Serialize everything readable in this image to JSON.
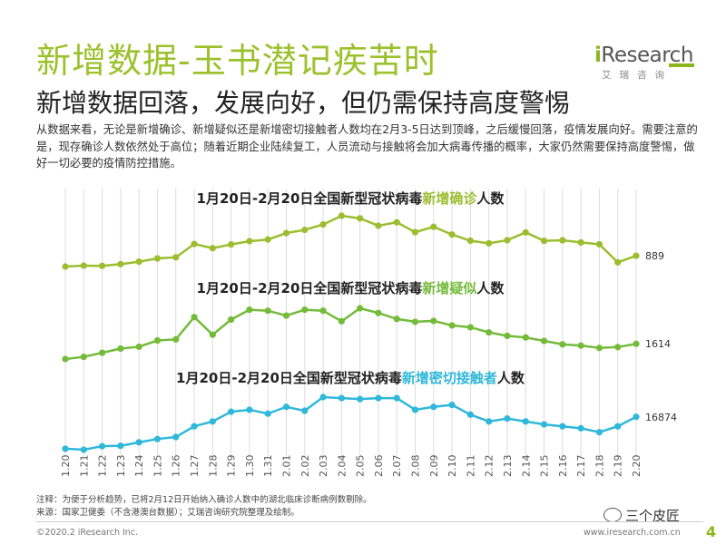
{
  "title": "新增数据-玉书潜记疾苦时",
  "subtitle": "新增数据回落，发展向好，但仍需保持高度警惕",
  "paragraph": "从数据来看，无论是新增确诊、新增疑似还是新增密切接触者人数均在2月3-5日达到顶峰，之后缓慢回落，疫情发展向好。需要注意的是，现存确诊人数依然处于高位；随着近期企业陆续复工，人员流动与接触将会加大病毒传播的概率，大家仍然需要保持高度警惕，做好一切必要的疫情防控措施。",
  "brand": {
    "logo_i": "i",
    "logo_rest": "Research",
    "cn": "艾瑞咨询"
  },
  "colors": {
    "title": "#9dc12c",
    "confirmed": "#9cbd2f",
    "suspected": "#74bb3a",
    "contacts": "#2fb8da",
    "grid": "#dcdcdc"
  },
  "chart_data": {
    "type": "line",
    "categories": [
      "1.20",
      "1.21",
      "1.22",
      "1.23",
      "1.24",
      "1.25",
      "1.26",
      "1.27",
      "1.28",
      "1.29",
      "1.30",
      "1.31",
      "2.01",
      "2.02",
      "2.03",
      "2.04",
      "2.05",
      "2.06",
      "2.07",
      "2.08",
      "2.09",
      "2.10",
      "2.11",
      "2.12",
      "2.13",
      "2.14",
      "2.15",
      "2.16",
      "2.17",
      "2.18",
      "2.19",
      "2.20"
    ],
    "series": [
      {
        "title_prefix": "1月20日-2月20日全国新型冠状病毒",
        "title_highlight": "新增确诊",
        "title_suffix": "人数",
        "end_label": "889",
        "values": [
          77,
          149,
          131,
          259,
          444,
          688,
          769,
          1771,
          1459,
          1737,
          1982,
          2102,
          2590,
          2829,
          3235,
          3887,
          3694,
          3143,
          3399,
          2656,
          3062,
          2478,
          2015,
          1820,
          2055,
          2641,
          2009,
          2048,
          1886,
          1749,
          394,
          889
        ]
      },
      {
        "title_prefix": "1月20日-2月20日全国新型冠状病毒",
        "title_highlight": "新增疑似",
        "title_suffix": "人数",
        "end_label": "1614",
        "values": [
          27,
          257,
          680,
          1118,
          1309,
          1965,
          2077,
          4406,
          2564,
          4148,
          5173,
          5072,
          4562,
          5173,
          5072,
          3971,
          5328,
          4833,
          4214,
          3916,
          4008,
          3536,
          3342,
          2807,
          2450,
          2277,
          1918,
          1563,
          1432,
          1185,
          1277,
          1614
        ]
      },
      {
        "title_prefix": "1月20日-2月20日全国新型冠状病毒",
        "title_highlight": "新增密切接触者",
        "title_suffix": "人数",
        "end_label": "16874",
        "values": [
          500,
          0,
          1800,
          2000,
          3800,
          5500,
          6500,
          12000,
          14500,
          19500,
          20500,
          18500,
          22000,
          20000,
          27000,
          26500,
          26000,
          26500,
          26500,
          20500,
          22000,
          23000,
          18000,
          14500,
          16000,
          14500,
          13000,
          12000,
          11000,
          9000,
          12000,
          16874
        ]
      }
    ]
  },
  "footnote1": "注释：为便于分析趋势，已将2月12日开始纳入确诊人数中的湖北临床诊断病例数剔除。",
  "footnote2": "来源：国家卫健委（不含港澳台数据）；艾瑞咨询研究院整理及绘制。",
  "copyright": "©2020.2 iResearch Inc.",
  "url": "www.iresearch.com.cn",
  "page_number": "4",
  "watermark": "三个皮匠"
}
